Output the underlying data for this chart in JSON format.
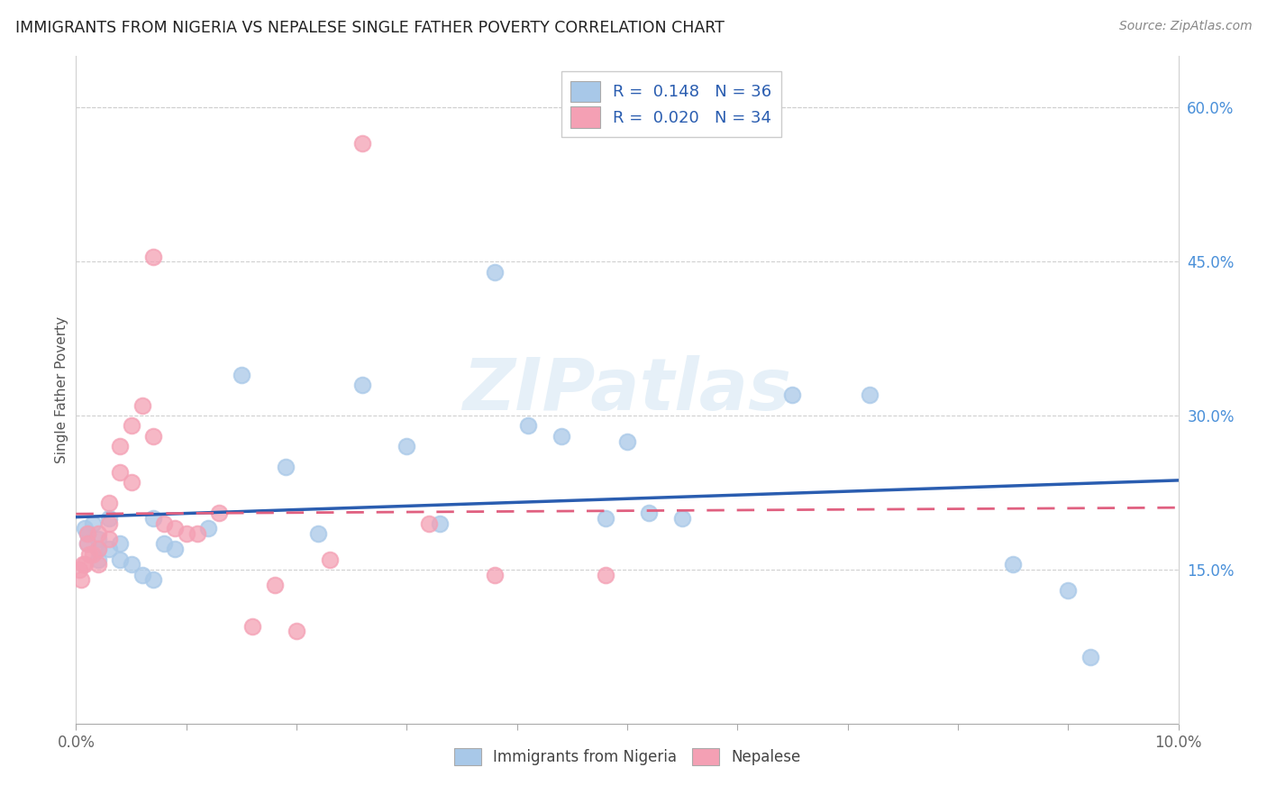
{
  "title": "IMMIGRANTS FROM NIGERIA VS NEPALESE SINGLE FATHER POVERTY CORRELATION CHART",
  "source": "Source: ZipAtlas.com",
  "ylabel": "Single Father Poverty",
  "legend_label1": "Immigrants from Nigeria",
  "legend_label2": "Nepalese",
  "r1": "0.148",
  "n1": "36",
  "r2": "0.020",
  "n2": "34",
  "xlim": [
    0.0,
    0.1
  ],
  "ylim": [
    0.0,
    0.65
  ],
  "xticks": [
    0.0,
    0.01,
    0.02,
    0.03,
    0.04,
    0.05,
    0.06,
    0.07,
    0.08,
    0.09,
    0.1
  ],
  "xtick_labels": [
    "0.0%",
    "",
    "",
    "",
    "",
    "",
    "",
    "",
    "",
    "",
    "10.0%"
  ],
  "yticks_right": [
    0.15,
    0.3,
    0.45,
    0.6
  ],
  "ytick_right_labels": [
    "15.0%",
    "30.0%",
    "45.0%",
    "60.0%"
  ],
  "color_blue": "#a8c8e8",
  "color_pink": "#f4a0b4",
  "color_blue_line": "#2a5db0",
  "color_pink_line": "#e06080",
  "watermark": "ZIPatlas",
  "blue_x": [
    0.0008,
    0.001,
    0.001,
    0.0015,
    0.002,
    0.002,
    0.002,
    0.003,
    0.003,
    0.004,
    0.004,
    0.005,
    0.006,
    0.007,
    0.007,
    0.008,
    0.009,
    0.012,
    0.015,
    0.019,
    0.022,
    0.026,
    0.03,
    0.033,
    0.038,
    0.041,
    0.044,
    0.048,
    0.05,
    0.052,
    0.055,
    0.065,
    0.072,
    0.085,
    0.09,
    0.092
  ],
  "blue_y": [
    0.19,
    0.185,
    0.175,
    0.195,
    0.18,
    0.17,
    0.16,
    0.2,
    0.17,
    0.175,
    0.16,
    0.155,
    0.145,
    0.14,
    0.2,
    0.175,
    0.17,
    0.19,
    0.34,
    0.25,
    0.185,
    0.33,
    0.27,
    0.195,
    0.44,
    0.29,
    0.28,
    0.2,
    0.275,
    0.205,
    0.2,
    0.32,
    0.32,
    0.155,
    0.13,
    0.065
  ],
  "pink_x": [
    0.0003,
    0.0005,
    0.0006,
    0.0008,
    0.001,
    0.001,
    0.0012,
    0.0015,
    0.002,
    0.002,
    0.002,
    0.003,
    0.003,
    0.003,
    0.004,
    0.004,
    0.005,
    0.005,
    0.006,
    0.007,
    0.007,
    0.008,
    0.009,
    0.01,
    0.011,
    0.013,
    0.016,
    0.018,
    0.02,
    0.023,
    0.026,
    0.032,
    0.038,
    0.048
  ],
  "pink_y": [
    0.15,
    0.14,
    0.155,
    0.155,
    0.185,
    0.175,
    0.165,
    0.165,
    0.185,
    0.17,
    0.155,
    0.215,
    0.195,
    0.18,
    0.27,
    0.245,
    0.29,
    0.235,
    0.31,
    0.455,
    0.28,
    0.195,
    0.19,
    0.185,
    0.185,
    0.205,
    0.095,
    0.135,
    0.09,
    0.16,
    0.565,
    0.195,
    0.145,
    0.145
  ]
}
